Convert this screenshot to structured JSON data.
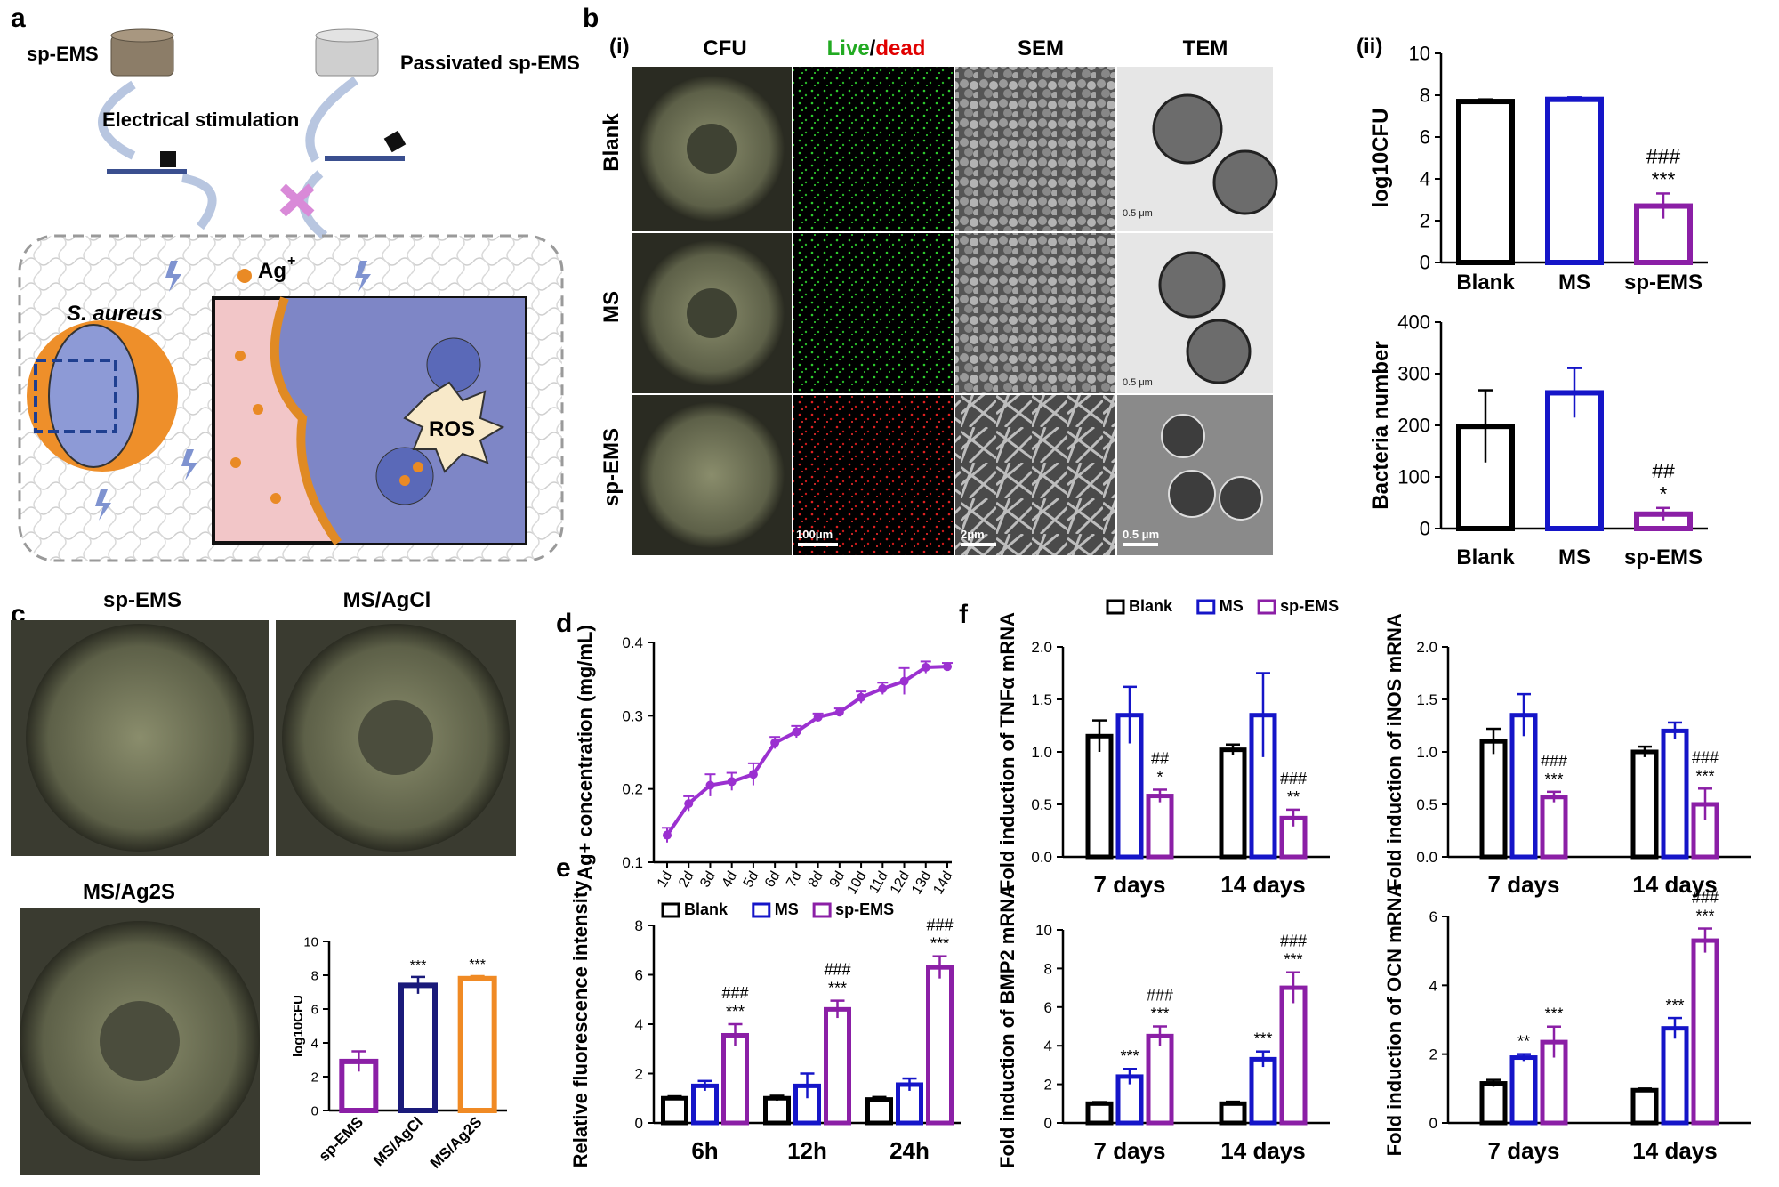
{
  "colors": {
    "blank": "#000000",
    "ms": "#1515c8",
    "spems": "#8b1fa6",
    "agcl_ms": "#1a1a7a",
    "ag2s": "#f08a24",
    "line": "#9b30d0",
    "live_green": "#22aa22",
    "dead_red": "#e00000"
  },
  "panel_a": {
    "letter": "a",
    "sp_ems_label": "sp-EMS",
    "passivated_label": "Passivated sp-EMS",
    "stimulation_label": "Electrical stimulation",
    "ion_label": "Ag",
    "ion_sup": "+",
    "bacteria_label": "S. aureus",
    "ros_label": "ROS"
  },
  "panel_b": {
    "letter": "b",
    "sub_i": "(i)",
    "sub_ii": "(ii)",
    "columns": [
      "CFU",
      "Live",
      "dead",
      "SEM",
      "TEM"
    ],
    "rows": [
      "Blank",
      "MS",
      "sp-EMS"
    ],
    "scale_bars": [
      "100μm",
      "2μm",
      "0.5 μm"
    ],
    "tem_scale": "0.5 μm"
  },
  "panel_c": {
    "letter": "c",
    "plates": [
      "sp-EMS",
      "MS/AgCl",
      "MS/Ag2S"
    ]
  },
  "panel_d": {
    "letter": "d"
  },
  "panel_e": {
    "letter": "e"
  },
  "panel_f": {
    "letter": "f"
  },
  "legend_names": [
    "Blank",
    "MS",
    "sp-EMS"
  ],
  "chart_data": [
    {
      "id": "b_cfu",
      "type": "bar",
      "categories": [
        "Blank",
        "MS",
        "sp-EMS"
      ],
      "values": [
        7.7,
        7.8,
        2.7
      ],
      "errors": [
        0.1,
        0.1,
        0.6
      ],
      "ylabel": "log10CFU",
      "ylim": [
        0,
        10
      ],
      "yticks": [
        0,
        2,
        4,
        6,
        8,
        10
      ],
      "annotations": [
        "",
        "",
        "###\n***"
      ]
    },
    {
      "id": "b_number",
      "type": "bar",
      "categories": [
        "Blank",
        "MS",
        "sp-EMS"
      ],
      "values": [
        198,
        263,
        28
      ],
      "errors": [
        70,
        48,
        12
      ],
      "ylabel": "Bacteria number",
      "ylim": [
        0,
        400
      ],
      "yticks": [
        0,
        100,
        200,
        300,
        400
      ],
      "annotations": [
        "",
        "",
        "##\n*"
      ]
    },
    {
      "id": "c_cfu",
      "type": "bar",
      "categories": [
        "sp-EMS",
        "MS/AgCl",
        "MS/Ag2S"
      ],
      "values": [
        2.9,
        7.4,
        7.8
      ],
      "errors": [
        0.6,
        0.5,
        0.15
      ],
      "ylabel": "log10CFU",
      "ylim": [
        0,
        10
      ],
      "yticks": [
        0,
        2,
        4,
        6,
        8,
        10
      ],
      "annotations": [
        "",
        "***",
        "***"
      ]
    },
    {
      "id": "d_line",
      "type": "line",
      "x": [
        "1d",
        "2d",
        "3d",
        "4d",
        "5d",
        "6d",
        "7d",
        "8d",
        "9d",
        "10d",
        "11d",
        "12d",
        "13d",
        "14d"
      ],
      "values": [
        0.137,
        0.18,
        0.205,
        0.21,
        0.22,
        0.263,
        0.278,
        0.298,
        0.305,
        0.325,
        0.337,
        0.347,
        0.366,
        0.367
      ],
      "errors": [
        0.01,
        0.01,
        0.015,
        0.012,
        0.015,
        0.008,
        0.008,
        0.005,
        0.005,
        0.008,
        0.008,
        0.018,
        0.008,
        0.005
      ],
      "ylabel": "Ag+ concentration (mg/mL)",
      "ylim": [
        0.1,
        0.4
      ],
      "yticks": [
        0.1,
        0.2,
        0.3,
        0.4
      ]
    },
    {
      "id": "e_fluor",
      "type": "bar",
      "categories": [
        "6h",
        "12h",
        "24h"
      ],
      "series": [
        {
          "name": "Blank",
          "values": [
            1.0,
            1.0,
            0.95
          ],
          "errors": [
            0.08,
            0.1,
            0.1
          ]
        },
        {
          "name": "MS",
          "values": [
            1.5,
            1.5,
            1.55
          ],
          "errors": [
            0.2,
            0.5,
            0.25
          ]
        },
        {
          "name": "sp-EMS",
          "values": [
            3.55,
            4.6,
            6.3
          ],
          "errors": [
            0.45,
            0.35,
            0.45
          ]
        }
      ],
      "ylabel": "Relative fluorescence intensity",
      "ylim": [
        0,
        8
      ],
      "yticks": [
        0,
        2,
        4,
        6,
        8
      ],
      "annotations": [
        [
          "",
          "",
          "###\n***"
        ],
        [
          "",
          "",
          "###\n***"
        ],
        [
          "",
          "",
          "###\n***"
        ]
      ]
    },
    {
      "id": "e_bmp2",
      "type": "bar",
      "categories": [
        "7 days",
        "14 days"
      ],
      "series": [
        {
          "name": "Blank",
          "values": [
            1.0,
            1.0
          ],
          "errors": [
            0.08,
            0.1
          ]
        },
        {
          "name": "MS",
          "values": [
            2.4,
            3.3
          ],
          "errors": [
            0.4,
            0.4
          ]
        },
        {
          "name": "sp-EMS",
          "values": [
            4.5,
            7.0
          ],
          "errors": [
            0.5,
            0.8
          ]
        }
      ],
      "ylabel": "Fold induction of BMP2 mRNA",
      "ylim": [
        0,
        10
      ],
      "yticks": [
        0,
        2,
        4,
        6,
        8,
        10
      ],
      "annotations": [
        [
          "",
          "***",
          "###\n***"
        ],
        [
          "",
          "***",
          "###\n***"
        ]
      ]
    },
    {
      "id": "e_ocn",
      "type": "bar",
      "categories": [
        "7 days",
        "14 days"
      ],
      "series": [
        {
          "name": "Blank",
          "values": [
            1.15,
            0.95
          ],
          "errors": [
            0.1,
            0.05
          ]
        },
        {
          "name": "MS",
          "values": [
            1.9,
            2.75
          ],
          "errors": [
            0.1,
            0.3
          ]
        },
        {
          "name": "sp-EMS",
          "values": [
            2.35,
            5.3
          ],
          "errors": [
            0.45,
            0.35
          ]
        }
      ],
      "ylabel": "Fold induction of OCN mRNA",
      "ylim": [
        0,
        6
      ],
      "yticks": [
        0,
        2,
        4,
        6
      ],
      "annotations": [
        [
          "",
          "**",
          "***"
        ],
        [
          "",
          "***",
          "###\n***"
        ]
      ]
    },
    {
      "id": "f_tnf",
      "type": "bar",
      "categories": [
        "7 days",
        "14 days"
      ],
      "series": [
        {
          "name": "Blank",
          "values": [
            1.15,
            1.02
          ],
          "errors": [
            0.15,
            0.05
          ]
        },
        {
          "name": "MS",
          "values": [
            1.35,
            1.35
          ],
          "errors": [
            0.27,
            0.4
          ]
        },
        {
          "name": "sp-EMS",
          "values": [
            0.58,
            0.37
          ],
          "errors": [
            0.06,
            0.08
          ]
        }
      ],
      "ylabel": "Fold induction of TNFα mRNA",
      "ylim": [
        0,
        2.0
      ],
      "yticks": [
        0.0,
        0.5,
        1.0,
        1.5,
        2.0
      ],
      "annotations": [
        [
          "",
          "",
          "##\n*"
        ],
        [
          "",
          "",
          "###\n**"
        ]
      ]
    },
    {
      "id": "f_inos",
      "type": "bar",
      "categories": [
        "7 days",
        "14 days"
      ],
      "series": [
        {
          "name": "Blank",
          "values": [
            1.1,
            1.0
          ],
          "errors": [
            0.12,
            0.05
          ]
        },
        {
          "name": "MS",
          "values": [
            1.35,
            1.2
          ],
          "errors": [
            0.2,
            0.08
          ]
        },
        {
          "name": "sp-EMS",
          "values": [
            0.57,
            0.5
          ],
          "errors": [
            0.05,
            0.15
          ]
        }
      ],
      "ylabel": "Fold induction of iNOS mRNA",
      "ylim": [
        0,
        2.0
      ],
      "yticks": [
        0.0,
        0.5,
        1.0,
        1.5,
        2.0
      ],
      "annotations": [
        [
          "",
          "",
          "###\n***"
        ],
        [
          "",
          "",
          "###\n***"
        ]
      ]
    }
  ]
}
